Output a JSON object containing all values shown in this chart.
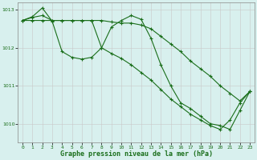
{
  "line1_x": [
    0,
    1,
    2,
    3,
    4,
    5,
    6,
    7,
    8,
    9,
    10,
    11,
    12,
    13,
    14,
    15,
    16,
    17,
    18,
    19,
    20,
    21,
    22,
    23
  ],
  "line1_y": [
    1012.72,
    1012.8,
    1012.85,
    1012.72,
    1012.72,
    1012.72,
    1012.72,
    1012.72,
    1012.72,
    1012.68,
    1012.65,
    1012.65,
    1012.6,
    1012.5,
    1012.3,
    1012.1,
    1011.9,
    1011.65,
    1011.45,
    1011.25,
    1011.0,
    1010.8,
    1010.6,
    1010.85
  ],
  "line2_x": [
    0,
    1,
    2,
    3,
    4,
    5,
    6,
    7,
    8,
    9,
    10,
    11,
    12,
    13,
    14,
    15,
    16,
    17,
    18,
    19,
    20,
    21,
    22,
    23
  ],
  "line2_y": [
    1012.72,
    1012.82,
    1013.05,
    1012.7,
    1011.9,
    1011.75,
    1011.7,
    1011.75,
    1012.0,
    1012.55,
    1012.72,
    1012.85,
    1012.75,
    1012.25,
    1011.55,
    1011.0,
    1010.55,
    1010.4,
    1010.2,
    1010.0,
    1009.95,
    1009.85,
    1010.35,
    1010.85
  ],
  "line3_x": [
    0,
    1,
    2,
    3,
    4,
    5,
    6,
    7,
    8,
    9,
    10,
    11,
    12,
    13,
    14,
    15,
    16,
    17,
    18,
    19,
    20,
    21,
    22,
    23
  ],
  "line3_y": [
    1012.72,
    1012.72,
    1012.72,
    1012.72,
    1012.72,
    1012.72,
    1012.72,
    1012.72,
    1012.0,
    1011.85,
    1011.72,
    1011.55,
    1011.35,
    1011.15,
    1010.9,
    1010.65,
    1010.45,
    1010.25,
    1010.1,
    1009.95,
    1009.85,
    1010.1,
    1010.55,
    1010.85
  ],
  "line_color": "#1a6e1a",
  "bg_color": "#d8f0ee",
  "grid_color_v": "#c8c8c8",
  "grid_color_h": "#c8c8c8",
  "xlabel": "Graphe pression niveau de la mer (hPa)",
  "ylim": [
    1009.5,
    1013.2
  ],
  "yticks": [
    1010,
    1011,
    1012,
    1013
  ],
  "xticks": [
    0,
    1,
    2,
    3,
    4,
    5,
    6,
    7,
    8,
    9,
    10,
    11,
    12,
    13,
    14,
    15,
    16,
    17,
    18,
    19,
    20,
    21,
    22,
    23
  ],
  "marker": "+",
  "markersize": 3,
  "linewidth": 0.8
}
